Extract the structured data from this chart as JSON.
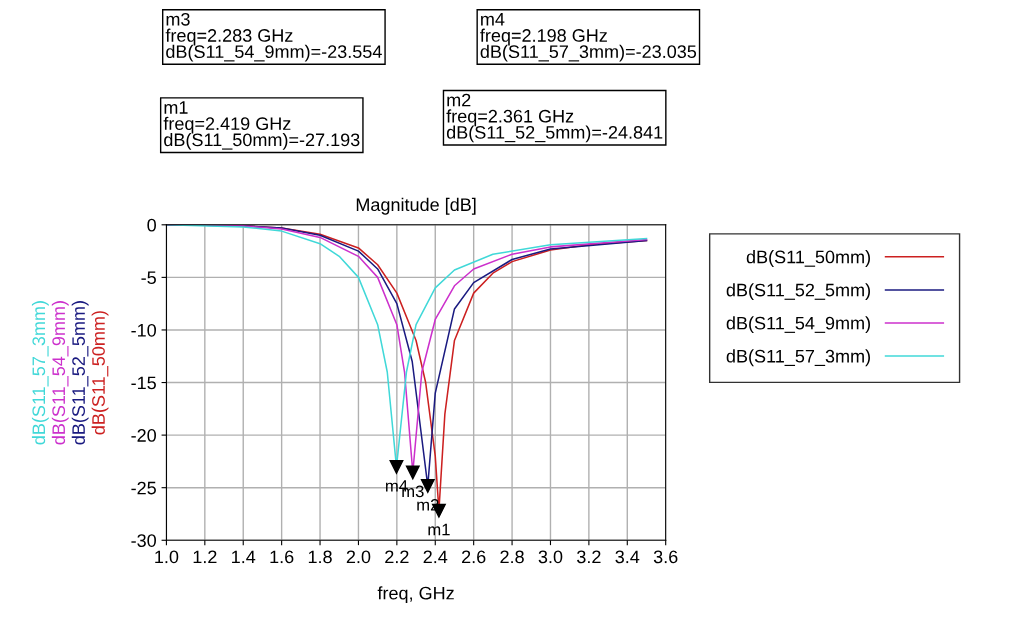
{
  "chart_data": {
    "type": "line",
    "title": "Magnitude [dB]",
    "xlabel": "freq, GHz",
    "xlim": [
      1.0,
      3.6
    ],
    "xticks": [
      {
        "value": 1,
        "label": "1.0"
      },
      1.2,
      1.4,
      1.6,
      1.8,
      {
        "value": 2,
        "label": "2.0"
      },
      2.2,
      2.4,
      2.6,
      2.8,
      {
        "value": 3,
        "label": "3.0"
      },
      3.2,
      3.4,
      3.6
    ],
    "ylim": [
      -30,
      0
    ],
    "yticks": [
      -30,
      -25,
      -20,
      -15,
      -10,
      -5,
      0
    ],
    "grid": true,
    "legend": "right",
    "line_style": "solid",
    "marker": "none",
    "series": [
      {
        "name": "dB(S11_50mm)",
        "color": "#cc2020",
        "x": [
          1.0,
          1.4,
          1.6,
          1.8,
          2.0,
          2.1,
          2.2,
          2.3,
          2.35,
          2.4,
          2.419,
          2.45,
          2.5,
          2.6,
          2.7,
          2.8,
          3.0,
          3.2,
          3.5
        ],
        "values": [
          0,
          -0.1,
          -0.3,
          -0.9,
          -2.2,
          -3.8,
          -6.5,
          -11,
          -15,
          -22,
          -27.193,
          -18,
          -11,
          -6.5,
          -4.6,
          -3.5,
          -2.4,
          -1.9,
          -1.5
        ]
      },
      {
        "name": "dB(S11_52_5mm)",
        "color": "#1a1a80",
        "x": [
          1.0,
          1.4,
          1.6,
          1.8,
          2.0,
          2.1,
          2.2,
          2.28,
          2.361,
          2.4,
          2.5,
          2.6,
          2.8,
          3.0,
          3.5
        ],
        "values": [
          0,
          -0.1,
          -0.3,
          -1.0,
          -2.5,
          -4.2,
          -7.5,
          -13,
          -24.841,
          -16,
          -8,
          -5.5,
          -3.3,
          -2.3,
          -1.5
        ]
      },
      {
        "name": "dB(S11_54_9mm)",
        "color": "#cc30cc",
        "x": [
          1.0,
          1.4,
          1.6,
          1.8,
          2.0,
          2.1,
          2.2,
          2.24,
          2.283,
          2.33,
          2.4,
          2.5,
          2.6,
          2.8,
          3.0,
          3.5
        ],
        "values": [
          0,
          -0.1,
          -0.4,
          -1.2,
          -3.0,
          -5.0,
          -9.5,
          -14,
          -23.554,
          -14,
          -9,
          -5.8,
          -4.2,
          -2.8,
          -2.1,
          -1.4
        ]
      },
      {
        "name": "dB(S11_57_3mm)",
        "color": "#40d8d8",
        "x": [
          1.0,
          1.4,
          1.6,
          1.8,
          1.9,
          2.0,
          2.1,
          2.15,
          2.198,
          2.25,
          2.3,
          2.4,
          2.5,
          2.7,
          3.0,
          3.5
        ],
        "values": [
          0,
          -0.2,
          -0.6,
          -1.8,
          -3.0,
          -5.0,
          -9.5,
          -14,
          -23.035,
          -14,
          -9.5,
          -6,
          -4.3,
          -2.8,
          -1.9,
          -1.3
        ]
      }
    ],
    "annotations": [
      "m3\nfreq=2.283 GHz\ndB(S11_54_9mm)=-23.554",
      "m4\nfreq=2.198 GHz\ndB(S11_57_3mm)=-23.035",
      "m1\nfreq=2.419 GHz\ndB(S11_50mm)=-27.193",
      "m2\nfreq=2.361 GHz\ndB(S11_52_5mm)=-24.841",
      {
        "text": "m1",
        "x": 2.419,
        "y": -27.193
      },
      {
        "text": "m2",
        "x": 2.361,
        "y": -24.841
      },
      {
        "text": "m3",
        "x": 2.283,
        "y": -23.554
      },
      {
        "text": "m4",
        "x": 2.198,
        "y": -23.035
      }
    ]
  }
}
